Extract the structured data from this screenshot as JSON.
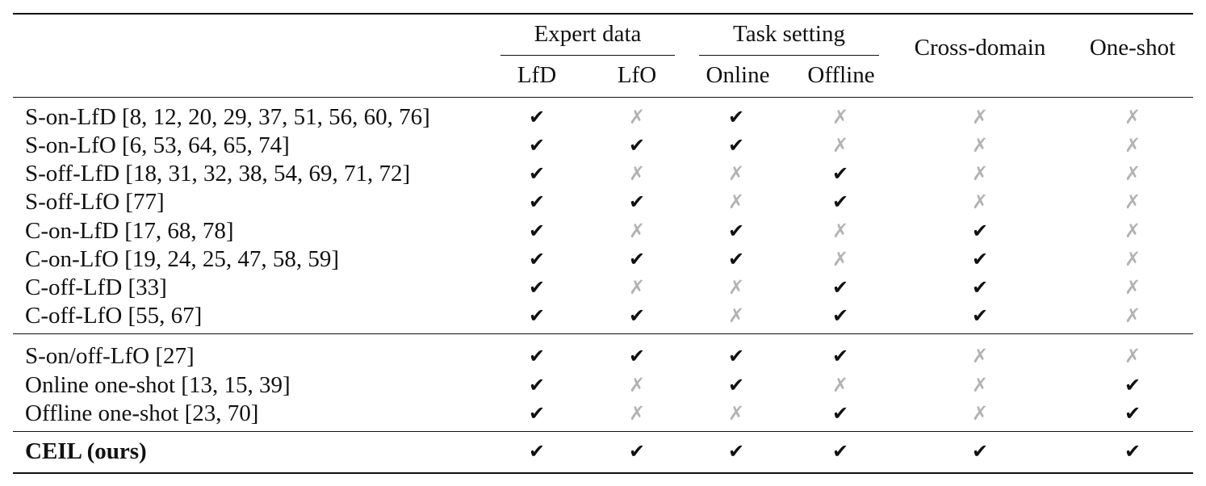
{
  "header": {
    "groups": [
      {
        "label": "Expert data",
        "subs": [
          "LfD",
          "LfO"
        ]
      },
      {
        "label": "Task setting",
        "subs": [
          "Online",
          "Offline"
        ]
      }
    ],
    "single_columns": [
      "Cross-domain",
      "One-shot"
    ]
  },
  "symbols": {
    "yes": "✔",
    "no": "✗"
  },
  "rows": [
    {
      "method": "S-on-LfD [8, 12, 20, 29, 37, 51, 56, 60, 76]",
      "marks": [
        true,
        false,
        true,
        false,
        false,
        false
      ]
    },
    {
      "method": "S-on-LfO [6, 53, 64, 65, 74]",
      "marks": [
        true,
        true,
        true,
        false,
        false,
        false
      ]
    },
    {
      "method": "S-off-LfD [18, 31, 32, 38, 54, 69, 71, 72]",
      "marks": [
        true,
        false,
        false,
        true,
        false,
        false
      ]
    },
    {
      "method": "S-off-LfO [77]",
      "marks": [
        true,
        true,
        false,
        true,
        false,
        false
      ]
    },
    {
      "method": "C-on-LfD [17, 68, 78]",
      "marks": [
        true,
        false,
        true,
        false,
        true,
        false
      ]
    },
    {
      "method": "C-on-LfO [19, 24, 25, 47, 58, 59]",
      "marks": [
        true,
        true,
        true,
        false,
        true,
        false
      ]
    },
    {
      "method": "C-off-LfD [33]",
      "marks": [
        true,
        false,
        false,
        true,
        true,
        false
      ]
    },
    {
      "method": "C-off-LfO [55, 67]",
      "marks": [
        true,
        true,
        false,
        true,
        true,
        false
      ]
    },
    {
      "method": "S-on/off-LfO [27]",
      "marks": [
        true,
        true,
        true,
        true,
        false,
        false
      ]
    },
    {
      "method": "Online one-shot [13, 15, 39]",
      "marks": [
        true,
        false,
        true,
        false,
        false,
        true
      ]
    },
    {
      "method": "Offline one-shot [23, 70]",
      "marks": [
        true,
        false,
        false,
        true,
        false,
        true
      ]
    },
    {
      "method": "CEIL (ours)",
      "bold": true,
      "marks": [
        true,
        true,
        true,
        true,
        true,
        true
      ]
    }
  ]
}
